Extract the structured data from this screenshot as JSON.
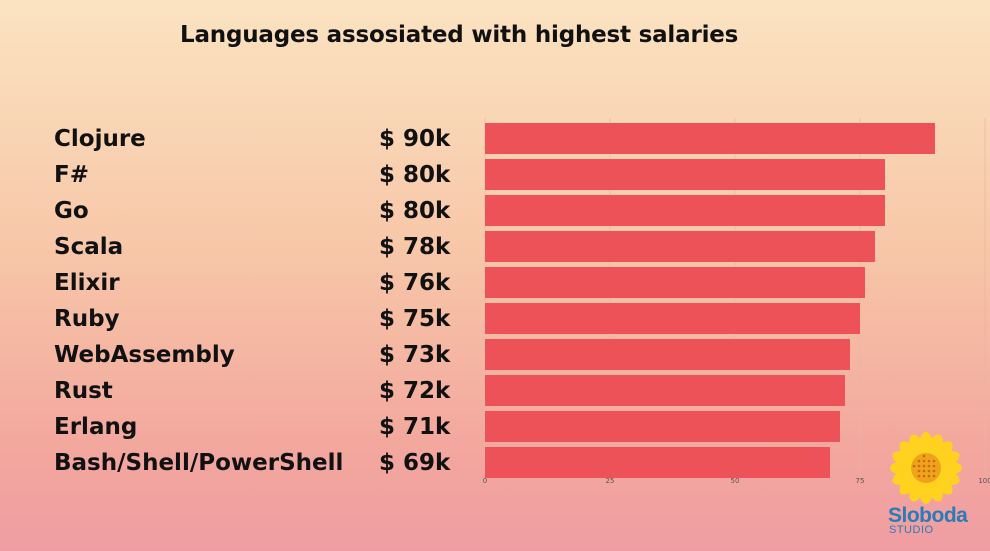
{
  "chart_data": {
    "type": "bar",
    "orientation": "horizontal",
    "title": "Languages assosiated with highest salaries",
    "categories": [
      "Clojure",
      "F#",
      "Go",
      "Scala",
      "Elixir",
      "Ruby",
      "WebAssembly",
      "Rust",
      "Erlang",
      "Bash/Shell/PowerShell"
    ],
    "values": [
      90,
      80,
      80,
      78,
      76,
      75,
      73,
      72,
      71,
      69
    ],
    "value_labels": [
      "$ 90k",
      "$ 80k",
      "$ 80k",
      "$ 78k",
      "$ 76k",
      "$ 75k",
      "$ 73k",
      "$ 72k",
      "$ 71k",
      "$ 69k"
    ],
    "xlim": [
      0,
      100
    ],
    "x_ticks": [
      "0",
      "25",
      "50",
      "75",
      "100"
    ],
    "grid": true,
    "bar_color": "#ee5259"
  },
  "logo": {
    "name": "Sloboda",
    "sub": "STUDIO",
    "icon": "sunflower-icon",
    "colors": {
      "petal": "#ffd21f",
      "center": "#f0a21a",
      "text": "#2b7bb8"
    }
  }
}
